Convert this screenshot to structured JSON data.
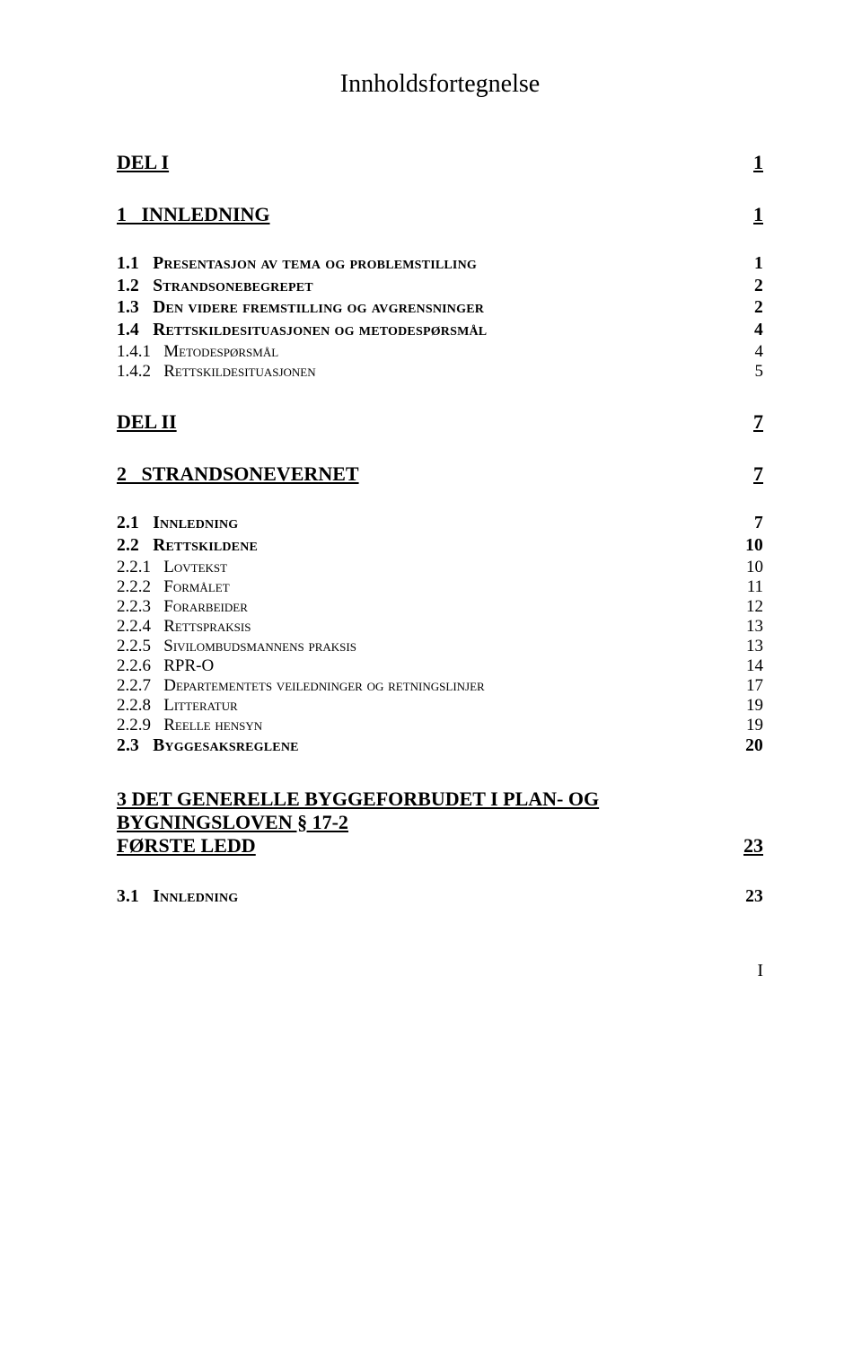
{
  "title": "Innholdsfortegnelse",
  "entries": [
    {
      "kind": "part",
      "label": "DEL I",
      "page": "1"
    },
    {
      "kind": "chapter",
      "label": "1   INNLEDNING",
      "page": "1"
    },
    {
      "kind": "section",
      "num": "1.1",
      "text": "Presentasjon av tema og problemstilling",
      "page": "1"
    },
    {
      "kind": "section",
      "num": "1.2",
      "text": "Strandsonebegrepet",
      "page": "2"
    },
    {
      "kind": "section",
      "num": "1.3",
      "text": "Den videre fremstilling og avgrensninger",
      "page": "2"
    },
    {
      "kind": "section",
      "num": "1.4",
      "text": "Rettskildesituasjonen og metodespørsmål",
      "page": "4"
    },
    {
      "kind": "subsection",
      "num": "1.4.1",
      "text": "Metodespørsmål",
      "page": "4"
    },
    {
      "kind": "subsection",
      "num": "1.4.2",
      "text": "Rettskildesituasjonen",
      "page": "5"
    },
    {
      "kind": "part",
      "label": "DEL II",
      "page": "7"
    },
    {
      "kind": "chapter",
      "label": "2   STRANDSONEVERNET",
      "page": "7"
    },
    {
      "kind": "section",
      "num": "2.1",
      "text": "Innledning",
      "page": "7"
    },
    {
      "kind": "section",
      "num": "2.2",
      "text": "Rettskildene",
      "page": "10"
    },
    {
      "kind": "subsection",
      "num": "2.2.1",
      "text": "Lovtekst",
      "page": "10"
    },
    {
      "kind": "subsection",
      "num": "2.2.2",
      "text": "Formålet",
      "page": "11"
    },
    {
      "kind": "subsection",
      "num": "2.2.3",
      "text": "Forarbeider",
      "page": "12"
    },
    {
      "kind": "subsection",
      "num": "2.2.4",
      "text": "Rettspraksis",
      "page": "13"
    },
    {
      "kind": "subsection",
      "num": "2.2.5",
      "text": "Sivilombudsmannens praksis",
      "page": "13"
    },
    {
      "kind": "subsection",
      "num": "2.2.6",
      "text": "RPR-O",
      "page": "14",
      "nocaps": true
    },
    {
      "kind": "subsection",
      "num": "2.2.7",
      "text": "Departementets veiledninger og retningslinjer",
      "page": "17"
    },
    {
      "kind": "subsection",
      "num": "2.2.8",
      "text": "Litteratur",
      "page": "19"
    },
    {
      "kind": "subsection",
      "num": "2.2.9",
      "text": "Reelle hensyn",
      "page": "19"
    },
    {
      "kind": "section",
      "num": "2.3",
      "text": "Byggesaksreglene",
      "page": "20"
    },
    {
      "kind": "chapter-multi",
      "line1": "3   DET GENERELLE BYGGEFORBUDET I PLAN- OG BYGNINGSLOVEN § 17-2",
      "line2": "FØRSTE LEDD",
      "page": "23"
    },
    {
      "kind": "section",
      "num": "3.1",
      "text": "Innledning",
      "page": "23"
    }
  ],
  "footerPageNumber": "I"
}
